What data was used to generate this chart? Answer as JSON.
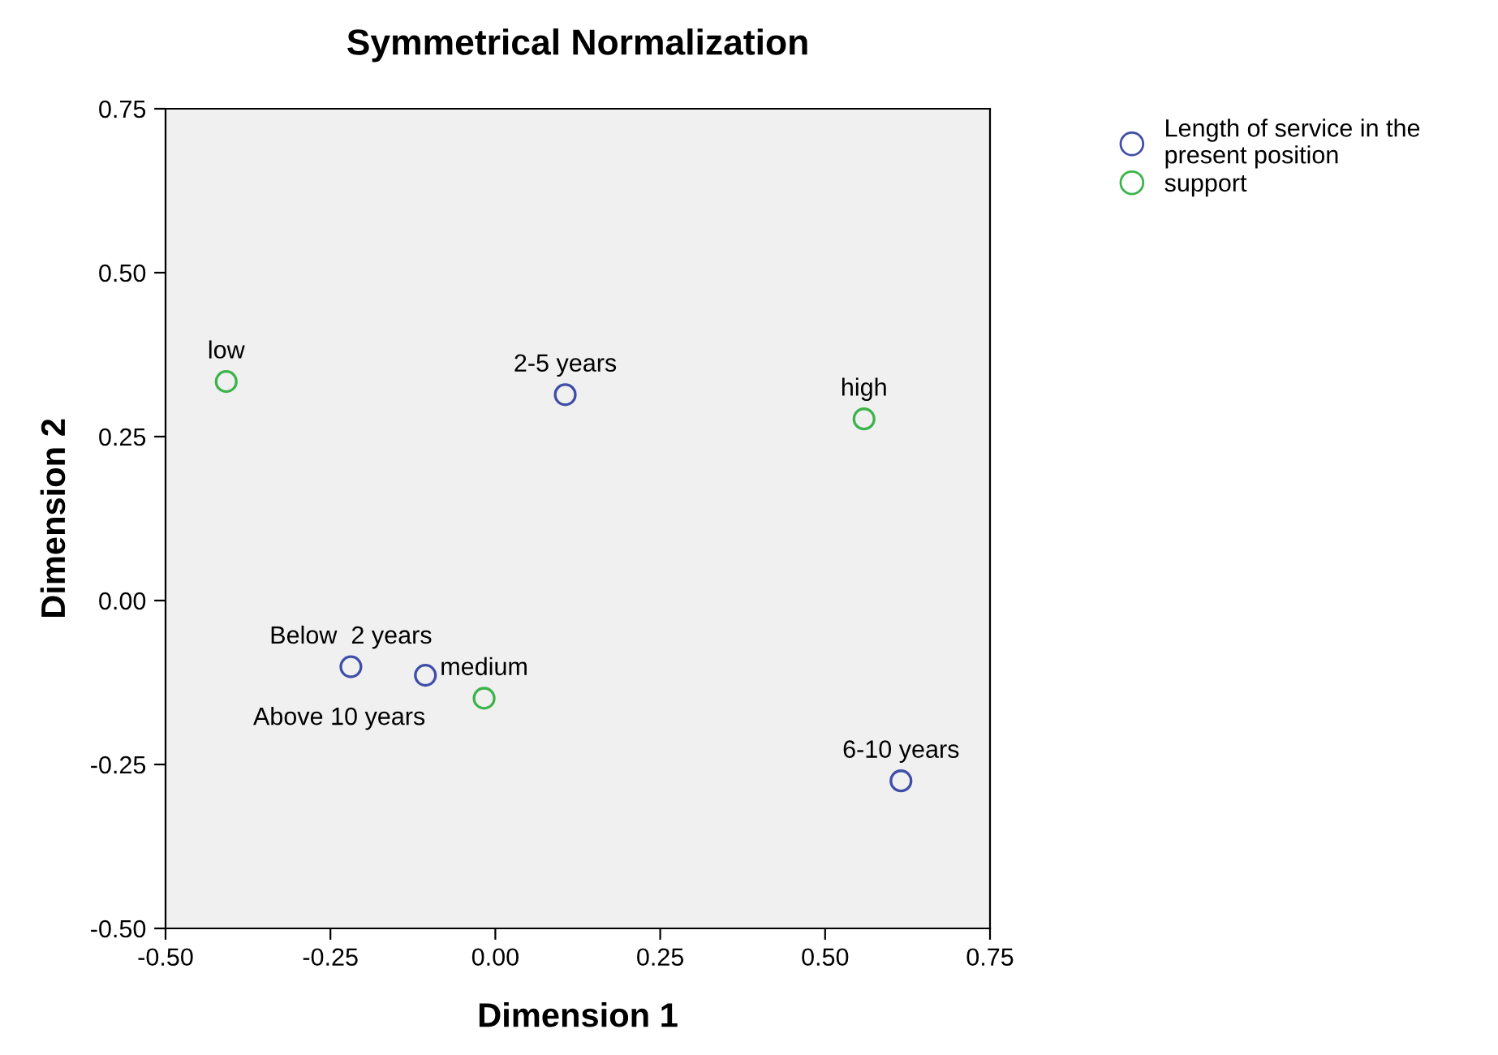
{
  "chart_data": {
    "type": "scatter",
    "title": "Symmetrical Normalization",
    "xlabel": "Dimension 1",
    "ylabel": "Dimension 2",
    "xlim": [
      -0.5,
      0.75
    ],
    "ylim": [
      -0.5,
      0.75
    ],
    "xticks": [
      {
        "value": -0.5,
        "label": "-0.50"
      },
      {
        "value": -0.25,
        "label": "-0.25"
      },
      {
        "value": 0,
        "label": "0.00"
      },
      {
        "value": 0.25,
        "label": "0.25"
      },
      {
        "value": 0.5,
        "label": "0.50"
      },
      {
        "value": 0.75,
        "label": "0.75"
      }
    ],
    "yticks": [
      {
        "value": -0.5,
        "label": "-0.50"
      },
      {
        "value": -0.25,
        "label": "-0.25"
      },
      {
        "value": 0,
        "label": "0.00"
      },
      {
        "value": 0.25,
        "label": "0.25"
      },
      {
        "value": 0.5,
        "label": "0.50"
      },
      {
        "value": 0.75,
        "label": "0.75"
      }
    ],
    "grid": false,
    "legend": "top right",
    "marker": "circle",
    "series": [
      {
        "name": "Length of service in the present position",
        "color": "#3f4fa8",
        "x": [
          0.106,
          -0.219,
          -0.106,
          0.615
        ],
        "values": [
          0.314,
          -0.101,
          -0.114,
          -0.275
        ],
        "value_labels": [
          "2-5 years",
          "Below  2 years",
          "Above 10 years",
          "6-10 years"
        ]
      },
      {
        "name": "support",
        "color": "#3cb44b",
        "x": [
          -0.408,
          0.559,
          -0.017
        ],
        "values": [
          0.334,
          0.277,
          -0.149
        ],
        "value_labels": [
          "low",
          "high",
          "medium"
        ]
      }
    ]
  }
}
